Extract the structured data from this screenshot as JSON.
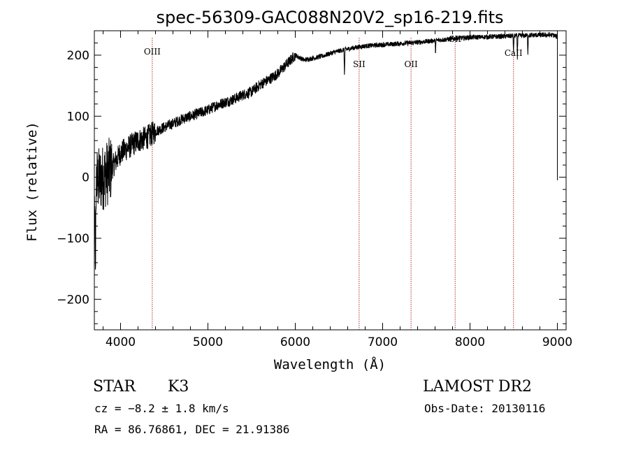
{
  "chart_data": {
    "type": "line",
    "title": "spec-56309-GAC088N20V2_sp16-219.fits",
    "xlabel": "Wavelength (Å)",
    "ylabel": "Flux (relative)",
    "xlim": [
      3700,
      9100
    ],
    "ylim": [
      -250,
      240
    ],
    "x_ticks": [
      4000,
      5000,
      6000,
      7000,
      8000,
      9000
    ],
    "x_tick_labels": [
      "4000",
      "5000",
      "6000",
      "7000",
      "8000",
      "9000"
    ],
    "y_ticks": [
      -200,
      -100,
      0,
      100,
      200
    ],
    "y_tick_labels": [
      "−200",
      "−100",
      "0",
      "100",
      "200"
    ],
    "spectrum_anchors": [
      {
        "x": 3700,
        "y": -10
      },
      {
        "x": 3800,
        "y": 0
      },
      {
        "x": 3900,
        "y": 15
      },
      {
        "x": 4000,
        "y": 40
      },
      {
        "x": 4100,
        "y": 50
      },
      {
        "x": 4200,
        "y": 60
      },
      {
        "x": 4300,
        "y": 65
      },
      {
        "x": 4400,
        "y": 75
      },
      {
        "x": 4500,
        "y": 82
      },
      {
        "x": 4600,
        "y": 88
      },
      {
        "x": 4700,
        "y": 95
      },
      {
        "x": 4800,
        "y": 100
      },
      {
        "x": 4900,
        "y": 105
      },
      {
        "x": 5000,
        "y": 110
      },
      {
        "x": 5100,
        "y": 118
      },
      {
        "x": 5200,
        "y": 123
      },
      {
        "x": 5300,
        "y": 128
      },
      {
        "x": 5400,
        "y": 135
      },
      {
        "x": 5500,
        "y": 140
      },
      {
        "x": 5600,
        "y": 152
      },
      {
        "x": 5700,
        "y": 160
      },
      {
        "x": 5800,
        "y": 170
      },
      {
        "x": 5900,
        "y": 185
      },
      {
        "x": 6000,
        "y": 200
      },
      {
        "x": 6100,
        "y": 192
      },
      {
        "x": 6200,
        "y": 195
      },
      {
        "x": 6300,
        "y": 198
      },
      {
        "x": 6400,
        "y": 203
      },
      {
        "x": 6500,
        "y": 207
      },
      {
        "x": 6600,
        "y": 210
      },
      {
        "x": 6700,
        "y": 213
      },
      {
        "x": 6800,
        "y": 215
      },
      {
        "x": 7000,
        "y": 217
      },
      {
        "x": 7200,
        "y": 219
      },
      {
        "x": 7400,
        "y": 221
      },
      {
        "x": 7600,
        "y": 224
      },
      {
        "x": 7800,
        "y": 227
      },
      {
        "x": 8000,
        "y": 229
      },
      {
        "x": 8200,
        "y": 230
      },
      {
        "x": 8400,
        "y": 231
      },
      {
        "x": 8600,
        "y": 232
      },
      {
        "x": 8800,
        "y": 233
      },
      {
        "x": 8950,
        "y": 233
      },
      {
        "x": 9000,
        "y": 230
      }
    ],
    "absorption_features": [
      {
        "x": 6563,
        "depth": 45
      },
      {
        "x": 7605,
        "depth": 20
      },
      {
        "x": 8498,
        "depth": 30
      },
      {
        "x": 8542,
        "depth": 35
      },
      {
        "x": 8662,
        "depth": 30
      }
    ],
    "series": [
      {
        "name": "",
        "color": "#000000"
      }
    ],
    "line_markers": [
      {
        "label": "OIII",
        "x": 4363,
        "color": "#b03030"
      },
      {
        "label": "SII",
        "x": 6731,
        "color": "#b03030"
      },
      {
        "label": "OII",
        "x": 7325,
        "color": "#b03030"
      },
      {
        "label": "SII",
        "x": 7830,
        "color": "#b03030"
      },
      {
        "label": "CaII",
        "x": 8498,
        "color": "#b03030"
      }
    ],
    "grid": false
  },
  "info": {
    "object_class": "STAR",
    "subclass": "K3",
    "cz": "cz = −8.2 ± 1.8 km/s",
    "coords": "RA =  86.76861, DEC =  21.91386",
    "survey": "LAMOST DR2",
    "obs_date": "Obs-Date: 20130116"
  }
}
